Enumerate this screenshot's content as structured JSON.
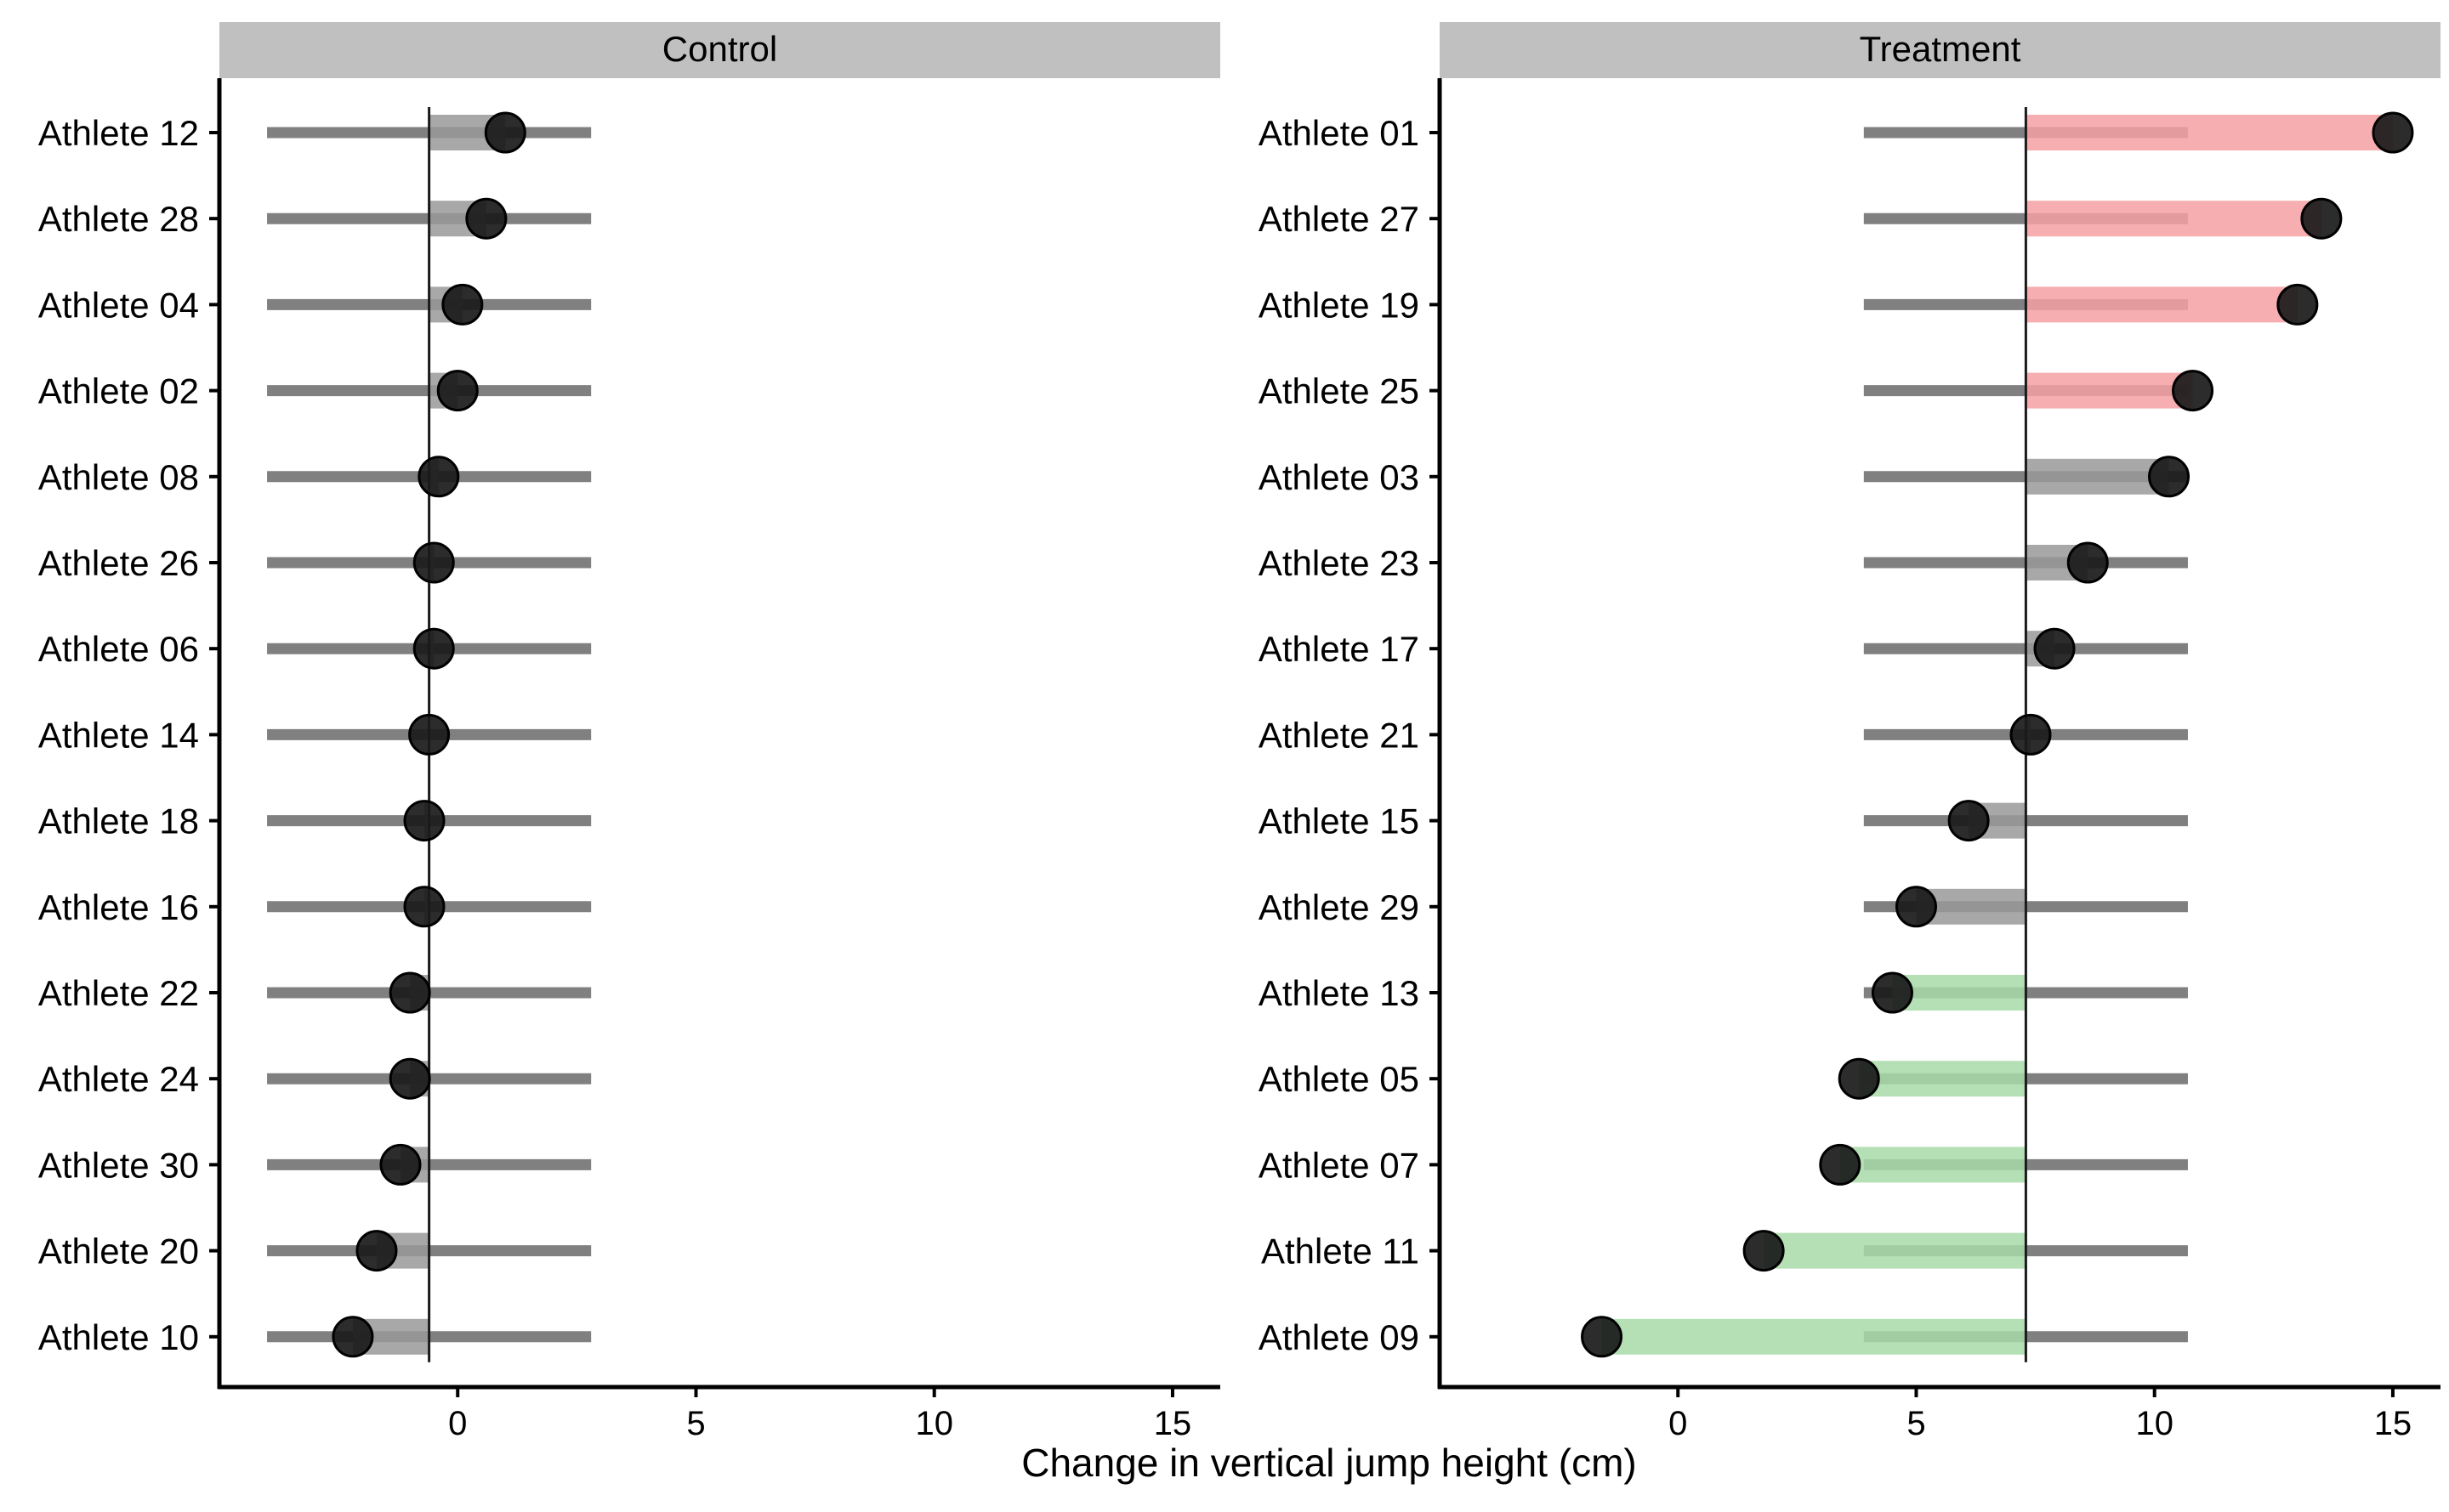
{
  "chart_data": {
    "type": "dot-interval",
    "xlabel": "Change in vertical jump height (cm)",
    "xlim": [
      -5,
      16
    ],
    "xticks": [
      0,
      5,
      10,
      15
    ],
    "colors": {
      "interval": "#808080",
      "positive": "#f4a0a3",
      "negative": "#a8daa8",
      "neutral": "#999999",
      "point": "#1a1a1a",
      "strip": "#c0c0c0"
    },
    "panels": [
      {
        "name": "Control",
        "mean": -0.6,
        "band": [
          -4,
          2.8
        ],
        "athletes": [
          {
            "label": "Athlete 12",
            "value": 1.0
          },
          {
            "label": "Athlete 28",
            "value": 0.6
          },
          {
            "label": "Athlete 04",
            "value": 0.1
          },
          {
            "label": "Athlete 02",
            "value": 0.0
          },
          {
            "label": "Athlete 08",
            "value": -0.4
          },
          {
            "label": "Athlete 26",
            "value": -0.5
          },
          {
            "label": "Athlete 06",
            "value": -0.5
          },
          {
            "label": "Athlete 14",
            "value": -0.6
          },
          {
            "label": "Athlete 18",
            "value": -0.7
          },
          {
            "label": "Athlete 16",
            "value": -0.7
          },
          {
            "label": "Athlete 22",
            "value": -1.0
          },
          {
            "label": "Athlete 24",
            "value": -1.0
          },
          {
            "label": "Athlete 30",
            "value": -1.2
          },
          {
            "label": "Athlete 20",
            "value": -1.7
          },
          {
            "label": "Athlete 10",
            "value": -2.2
          }
        ]
      },
      {
        "name": "Treatment",
        "mean": 7.3,
        "band": [
          3.9,
          10.7
        ],
        "athletes": [
          {
            "label": "Athlete 01",
            "value": 15.0
          },
          {
            "label": "Athlete 27",
            "value": 13.5
          },
          {
            "label": "Athlete 19",
            "value": 13.0
          },
          {
            "label": "Athlete 25",
            "value": 10.8
          },
          {
            "label": "Athlete 03",
            "value": 10.3
          },
          {
            "label": "Athlete 23",
            "value": 8.6
          },
          {
            "label": "Athlete 17",
            "value": 7.9
          },
          {
            "label": "Athlete 21",
            "value": 7.4
          },
          {
            "label": "Athlete 15",
            "value": 6.1
          },
          {
            "label": "Athlete 29",
            "value": 5.0
          },
          {
            "label": "Athlete 13",
            "value": 4.5
          },
          {
            "label": "Athlete 05",
            "value": 3.8
          },
          {
            "label": "Athlete 07",
            "value": 3.4
          },
          {
            "label": "Athlete 11",
            "value": 1.8
          },
          {
            "label": "Athlete 09",
            "value": -1.6
          }
        ]
      }
    ]
  }
}
